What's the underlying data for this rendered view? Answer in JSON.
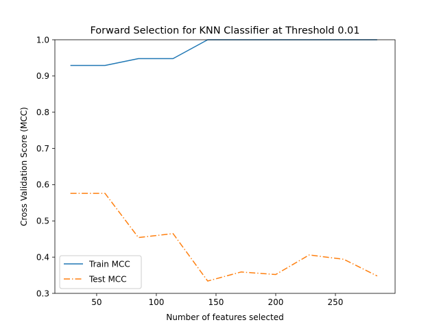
{
  "chart_data": {
    "type": "line",
    "title": "Forward Selection for KNN Classifier at Threshold 0.01",
    "xlabel": "Number of features selected",
    "ylabel": "Cross Validation Score (MCC)",
    "xlim": [
      15,
      300
    ],
    "ylim": [
      0.3,
      1.0
    ],
    "xticks": [
      50,
      100,
      150,
      200,
      250
    ],
    "yticks": [
      0.3,
      0.4,
      0.5,
      0.6,
      0.7,
      0.8,
      0.9,
      1.0
    ],
    "grid": false,
    "legend_position": "lower-left",
    "x": [
      28,
      57,
      85,
      114,
      143,
      171,
      200,
      228,
      257,
      285
    ],
    "series": [
      {
        "name": "Train MCC",
        "color": "#1f77b4",
        "linestyle": "solid",
        "values": [
          0.929,
          0.929,
          0.948,
          0.948,
          1.0,
          1.0,
          1.0,
          1.0,
          1.0,
          1.0
        ]
      },
      {
        "name": "Test MCC",
        "color": "#ff7f0e",
        "linestyle": "dashdot",
        "values": [
          0.576,
          0.576,
          0.454,
          0.465,
          0.334,
          0.359,
          0.352,
          0.406,
          0.394,
          0.348
        ]
      }
    ]
  }
}
